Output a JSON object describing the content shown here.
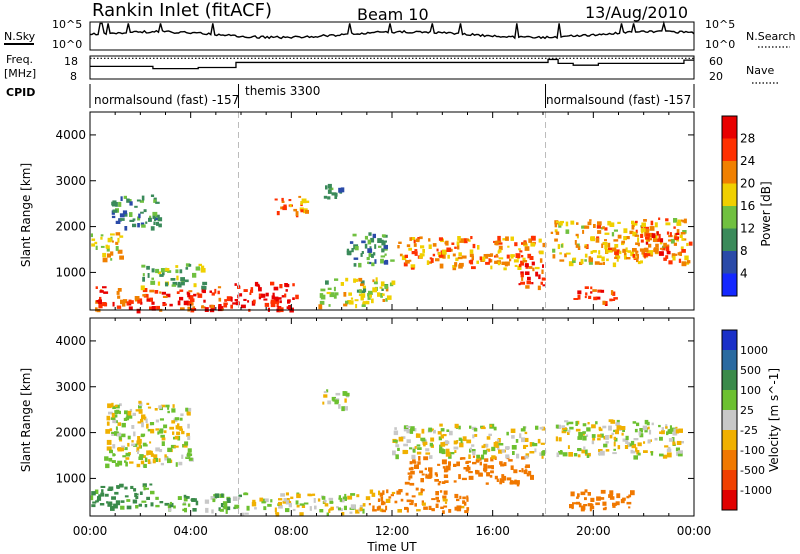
{
  "header": {
    "station": "Rankin Inlet (fitACF)",
    "beam": "Beam 10",
    "date": "13/Aug/2010"
  },
  "top_panels": {
    "nsky_label": "N.Sky",
    "nsearch_label": "N.Search",
    "nsky_ticks": [
      "10^5",
      "10^0"
    ],
    "nsky_right_ticks": [
      "10^5",
      "10^0"
    ],
    "freq_label_1": "Freq.",
    "freq_label_2": "[MHz]",
    "freq_ticks": [
      "18",
      "8"
    ],
    "nave_ticks": [
      "60",
      "20"
    ],
    "nave_label": "Nave",
    "cpid_label": "CPID",
    "cpid_segments": [
      {
        "label": "normalsound (fast) -157",
        "start_hour": 0,
        "end_hour": 5.9
      },
      {
        "label": "themis 3300",
        "start_hour": 5.9,
        "end_hour": 18.1
      },
      {
        "label": "normalsound (fast) -157",
        "start_hour": 18.1,
        "end_hour": 24
      }
    ]
  },
  "axes": {
    "ylabel": "Slant Range [km]",
    "xlabel": "Time UT",
    "y_ticks": [
      "1000",
      "2000",
      "3000",
      "4000"
    ],
    "x_ticks": [
      "00:00",
      "04:00",
      "08:00",
      "12:00",
      "16:00",
      "20:00",
      "00:00"
    ]
  },
  "power_scale": {
    "title": "Power [dB]",
    "labels": [
      "4",
      "8",
      "12",
      "16",
      "20",
      "24",
      "28"
    ],
    "colors": [
      "#1428ff",
      "#2a4aa8",
      "#3a8a5a",
      "#70c040",
      "#f0d000",
      "#f08000",
      "#ff3000",
      "#e80000"
    ]
  },
  "velocity_scale": {
    "title": "Velocity [m s^-1]",
    "labels": [
      "1000",
      "500",
      "100",
      "25",
      "-25",
      "-100",
      "-500",
      "-1000"
    ],
    "colors": [
      "#1a30c8",
      "#2a6aa0",
      "#3a8a4a",
      "#6cc030",
      "#c8c8c8",
      "#f0b000",
      "#f07800",
      "#f04000",
      "#e00000"
    ]
  },
  "chart_data": {
    "type": "heatmap",
    "title": "Rankin Inlet (fitACF)",
    "xlabel": "Time UT",
    "ylabel": "Slant Range [km]",
    "xlim": [
      0,
      24
    ],
    "ylim": [
      180,
      4500
    ],
    "x_ticks_hours": [
      0,
      4,
      8,
      12,
      16,
      20,
      24
    ],
    "y_ticks_km": [
      1000,
      2000,
      3000,
      4000
    ],
    "panels": [
      {
        "name": "Power [dB]",
        "scale": [
          0,
          32
        ],
        "regions": [
          {
            "t0": 0.2,
            "t1": 5.5,
            "r0": 200,
            "r1": 700,
            "value": 26
          },
          {
            "t0": 5.5,
            "t1": 8.2,
            "r0": 200,
            "r1": 800,
            "value": 30
          },
          {
            "t0": 0.0,
            "t1": 1.2,
            "r0": 1300,
            "r1": 1900,
            "value": 18
          },
          {
            "t0": 0.8,
            "t1": 2.8,
            "r0": 2000,
            "r1": 2700,
            "value": 9
          },
          {
            "t0": 2.0,
            "t1": 4.5,
            "r0": 700,
            "r1": 1200,
            "value": 14
          },
          {
            "t0": 7.2,
            "t1": 8.6,
            "r0": 2300,
            "r1": 2700,
            "value": 22
          },
          {
            "t0": 9.2,
            "t1": 10.0,
            "r0": 2600,
            "r1": 3000,
            "value": 8
          },
          {
            "t0": 10.2,
            "t1": 12.0,
            "r0": 1200,
            "r1": 1900,
            "value": 9
          },
          {
            "t0": 12.2,
            "t1": 18.0,
            "r0": 1100,
            "r1": 1800,
            "value": 22
          },
          {
            "t0": 17.0,
            "t1": 18.0,
            "r0": 700,
            "r1": 1300,
            "value": 28
          },
          {
            "t0": 18.3,
            "t1": 23.8,
            "r0": 1200,
            "r1": 2200,
            "value": 20
          },
          {
            "t0": 19.2,
            "t1": 20.8,
            "r0": 350,
            "r1": 700,
            "value": 26
          },
          {
            "t0": 21.5,
            "t1": 23.5,
            "r0": 1400,
            "r1": 1900,
            "value": 26
          },
          {
            "t0": 9.0,
            "t1": 12.0,
            "r0": 300,
            "r1": 900,
            "value": 16
          }
        ]
      },
      {
        "name": "Velocity [m s^-1]",
        "scale": [
          -1000,
          1000
        ],
        "regions": [
          {
            "t0": 0.0,
            "t1": 3.0,
            "r0": 400,
            "r1": 900,
            "value": 150
          },
          {
            "t0": 0.5,
            "t1": 4.0,
            "r0": 1300,
            "r1": 2700,
            "value": 0
          },
          {
            "t0": 3.0,
            "t1": 6.0,
            "r0": 300,
            "r1": 700,
            "value": 80
          },
          {
            "t0": 6.0,
            "t1": 11.0,
            "r0": 250,
            "r1": 700,
            "value": 0
          },
          {
            "t0": 9.2,
            "t1": 10.2,
            "r0": 2500,
            "r1": 3000,
            "value": 0
          },
          {
            "t0": 12.5,
            "t1": 17.5,
            "r0": 900,
            "r1": 1500,
            "value": -300
          },
          {
            "t0": 12.0,
            "t1": 18.0,
            "r0": 1500,
            "r1": 2200,
            "value": 0
          },
          {
            "t0": 11.0,
            "t1": 15.0,
            "r0": 300,
            "r1": 800,
            "value": -150
          },
          {
            "t0": 18.5,
            "t1": 23.5,
            "r0": 1500,
            "r1": 2300,
            "value": 0
          },
          {
            "t0": 19.0,
            "t1": 21.5,
            "r0": 350,
            "r1": 800,
            "value": -250
          }
        ]
      }
    ],
    "cpid_changes_hours": [
      5.9,
      18.1
    ]
  }
}
